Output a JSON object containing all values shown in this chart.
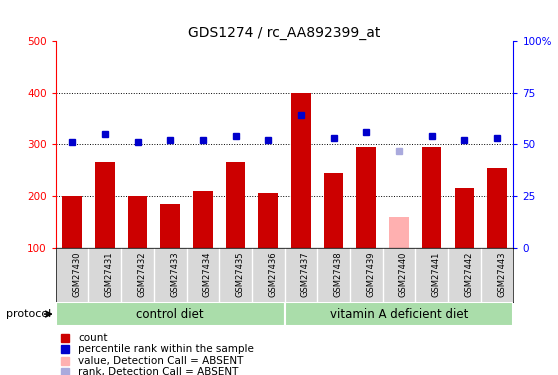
{
  "title": "GDS1274 / rc_AA892399_at",
  "samples": [
    "GSM27430",
    "GSM27431",
    "GSM27432",
    "GSM27433",
    "GSM27434",
    "GSM27435",
    "GSM27436",
    "GSM27437",
    "GSM27438",
    "GSM27439",
    "GSM27440",
    "GSM27441",
    "GSM27442",
    "GSM27443"
  ],
  "counts": [
    200,
    265,
    200,
    185,
    210,
    265,
    205,
    400,
    245,
    295,
    0,
    295,
    215,
    255
  ],
  "counts_absent": [
    0,
    0,
    0,
    0,
    0,
    0,
    0,
    0,
    0,
    0,
    160,
    0,
    0,
    0
  ],
  "ranks_pct": [
    51,
    55,
    51,
    52,
    52,
    54,
    52,
    64,
    53,
    56,
    47,
    54,
    52,
    53
  ],
  "rank_absent_pct": [
    47
  ],
  "rank_absent_idx": 10,
  "left_ylim": [
    100,
    500
  ],
  "right_ylim": [
    0,
    100
  ],
  "left_ticks": [
    100,
    200,
    300,
    400,
    500
  ],
  "right_ticks": [
    0,
    25,
    50,
    75,
    100
  ],
  "right_tick_labels": [
    "0",
    "25",
    "50",
    "75",
    "100%"
  ],
  "bar_color": "#cc0000",
  "bar_absent_color": "#ffb0b0",
  "rank_color": "#0000cc",
  "rank_absent_color": "#aaaadd",
  "control_label": "control diet",
  "vitamin_label": "vitamin A deficient diet",
  "protocol_label": "protocol",
  "legend_items": [
    {
      "label": "count",
      "color": "#cc0000"
    },
    {
      "label": "percentile rank within the sample",
      "color": "#0000cc"
    },
    {
      "label": "value, Detection Call = ABSENT",
      "color": "#ffb0b0"
    },
    {
      "label": "rank, Detection Call = ABSENT",
      "color": "#aaaadd"
    }
  ],
  "background_color": "#ffffff",
  "green_bg": "#aaddaa",
  "panel_bg": "#d8d8d8",
  "n_control": 7,
  "n_total": 14
}
